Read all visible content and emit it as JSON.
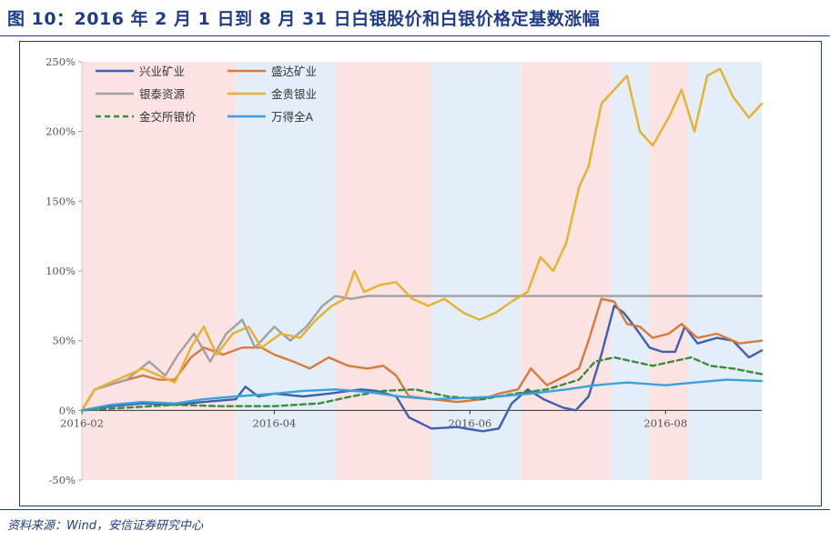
{
  "header": {
    "title": "图 10：2016 年 2 月 1 日到 8 月 31 日白银股价和白银价格定基数涨幅"
  },
  "footer": {
    "source": "资料来源：Wind，安信证券研究中心"
  },
  "chart_data": {
    "type": "line",
    "x_range": [
      "2016-02-01",
      "2016-08-31"
    ],
    "ylim": [
      -50,
      250
    ],
    "y_ticks": [
      "250%",
      "200%",
      "150%",
      "100%",
      "50%",
      "0%",
      "-50%"
    ],
    "y_tick_values": [
      250,
      200,
      150,
      100,
      50,
      0,
      -50
    ],
    "x_tick_labels": [
      "2016-02",
      "2016-04",
      "2016-06",
      "2016-08"
    ],
    "x_tick_dates": [
      "2016-02-01",
      "2016-04-01",
      "2016-06-01",
      "2016-08-01"
    ],
    "grid": false,
    "legend_position": "top-left",
    "shaded_periods": [
      {
        "start": "2016-02-01",
        "end": "2016-03-20",
        "color": "#fbe3e3"
      },
      {
        "start": "2016-03-20",
        "end": "2016-04-20",
        "color": "#e3eef8"
      },
      {
        "start": "2016-04-20",
        "end": "2016-05-20",
        "color": "#fbe3e3"
      },
      {
        "start": "2016-05-20",
        "end": "2016-06-17",
        "color": "#e3eef8"
      },
      {
        "start": "2016-06-17",
        "end": "2016-07-15",
        "color": "#fbe3e3"
      },
      {
        "start": "2016-07-15",
        "end": "2016-07-27",
        "color": "#e3eef8"
      },
      {
        "start": "2016-07-27",
        "end": "2016-08-08",
        "color": "#fbe3e3"
      },
      {
        "start": "2016-08-08",
        "end": "2016-08-31",
        "color": "#e3eef8"
      }
    ],
    "series": [
      {
        "name": "兴业矿业",
        "color": "#3f5fb0",
        "dash": false,
        "points": [
          [
            "2016-02-01",
            0
          ],
          [
            "2016-02-10",
            3
          ],
          [
            "2016-02-20",
            5
          ],
          [
            "2016-03-01",
            4
          ],
          [
            "2016-03-10",
            6
          ],
          [
            "2016-03-20",
            8
          ],
          [
            "2016-03-23",
            17
          ],
          [
            "2016-03-27",
            10
          ],
          [
            "2016-04-01",
            12
          ],
          [
            "2016-04-10",
            10
          ],
          [
            "2016-04-18",
            12
          ],
          [
            "2016-04-28",
            15
          ],
          [
            "2016-05-03",
            14
          ],
          [
            "2016-05-09",
            10
          ],
          [
            "2016-05-13",
            -5
          ],
          [
            "2016-05-20",
            -13
          ],
          [
            "2016-05-28",
            -12
          ],
          [
            "2016-06-05",
            -15
          ],
          [
            "2016-06-10",
            -13
          ],
          [
            "2016-06-14",
            5
          ],
          [
            "2016-06-19",
            15
          ],
          [
            "2016-06-24",
            8
          ],
          [
            "2016-06-30",
            2
          ],
          [
            "2016-07-04",
            0
          ],
          [
            "2016-07-08",
            10
          ],
          [
            "2016-07-12",
            40
          ],
          [
            "2016-07-16",
            75
          ],
          [
            "2016-07-19",
            70
          ],
          [
            "2016-07-23",
            58
          ],
          [
            "2016-07-27",
            45
          ],
          [
            "2016-07-31",
            42
          ],
          [
            "2016-08-04",
            42
          ],
          [
            "2016-08-07",
            60
          ],
          [
            "2016-08-11",
            48
          ],
          [
            "2016-08-17",
            52
          ],
          [
            "2016-08-22",
            50
          ],
          [
            "2016-08-27",
            38
          ],
          [
            "2016-08-31",
            43
          ]
        ]
      },
      {
        "name": "盛达矿业",
        "color": "#d77a3a",
        "dash": false,
        "points": [
          [
            "2016-02-01",
            0
          ],
          [
            "2016-02-05",
            15
          ],
          [
            "2016-02-12",
            20
          ],
          [
            "2016-02-20",
            25
          ],
          [
            "2016-02-25",
            22
          ],
          [
            "2016-03-01",
            22
          ],
          [
            "2016-03-06",
            38
          ],
          [
            "2016-03-10",
            45
          ],
          [
            "2016-03-16",
            40
          ],
          [
            "2016-03-22",
            45
          ],
          [
            "2016-03-28",
            45
          ],
          [
            "2016-04-01",
            40
          ],
          [
            "2016-04-07",
            35
          ],
          [
            "2016-04-12",
            30
          ],
          [
            "2016-04-18",
            38
          ],
          [
            "2016-04-24",
            32
          ],
          [
            "2016-04-30",
            30
          ],
          [
            "2016-05-05",
            32
          ],
          [
            "2016-05-09",
            25
          ],
          [
            "2016-05-13",
            10
          ],
          [
            "2016-05-20",
            8
          ],
          [
            "2016-05-28",
            6
          ],
          [
            "2016-06-05",
            8
          ],
          [
            "2016-06-10",
            12
          ],
          [
            "2016-06-16",
            15
          ],
          [
            "2016-06-20",
            30
          ],
          [
            "2016-06-25",
            18
          ],
          [
            "2016-07-01",
            25
          ],
          [
            "2016-07-05",
            30
          ],
          [
            "2016-07-08",
            50
          ],
          [
            "2016-07-12",
            80
          ],
          [
            "2016-07-16",
            78
          ],
          [
            "2016-07-20",
            62
          ],
          [
            "2016-07-24",
            60
          ],
          [
            "2016-07-28",
            52
          ],
          [
            "2016-08-02",
            55
          ],
          [
            "2016-08-06",
            62
          ],
          [
            "2016-08-11",
            52
          ],
          [
            "2016-08-17",
            55
          ],
          [
            "2016-08-24",
            48
          ],
          [
            "2016-08-31",
            50
          ]
        ]
      },
      {
        "name": "银泰资源",
        "color": "#a0a0a0",
        "dash": false,
        "points": [
          [
            "2016-02-01",
            0
          ],
          [
            "2016-02-05",
            15
          ],
          [
            "2016-02-15",
            22
          ],
          [
            "2016-02-22",
            35
          ],
          [
            "2016-02-27",
            25
          ],
          [
            "2016-03-02",
            40
          ],
          [
            "2016-03-07",
            55
          ],
          [
            "2016-03-12",
            35
          ],
          [
            "2016-03-17",
            55
          ],
          [
            "2016-03-22",
            65
          ],
          [
            "2016-03-26",
            45
          ],
          [
            "2016-04-01",
            60
          ],
          [
            "2016-04-06",
            50
          ],
          [
            "2016-04-11",
            60
          ],
          [
            "2016-04-16",
            75
          ],
          [
            "2016-04-20",
            82
          ],
          [
            "2016-04-25",
            80
          ],
          [
            "2016-04-30",
            82
          ],
          [
            "2016-05-10",
            82
          ],
          [
            "2016-06-01",
            82
          ],
          [
            "2016-07-01",
            82
          ],
          [
            "2016-08-01",
            82
          ],
          [
            "2016-08-31",
            82
          ]
        ]
      },
      {
        "name": "金贵银业",
        "color": "#e6b12e",
        "dash": false,
        "points": [
          [
            "2016-02-01",
            0
          ],
          [
            "2016-02-05",
            15
          ],
          [
            "2016-02-12",
            22
          ],
          [
            "2016-02-20",
            30
          ],
          [
            "2016-02-25",
            25
          ],
          [
            "2016-03-01",
            20
          ],
          [
            "2016-03-06",
            45
          ],
          [
            "2016-03-10",
            60
          ],
          [
            "2016-03-14",
            40
          ],
          [
            "2016-03-19",
            55
          ],
          [
            "2016-03-24",
            60
          ],
          [
            "2016-03-28",
            45
          ],
          [
            "2016-04-03",
            55
          ],
          [
            "2016-04-09",
            52
          ],
          [
            "2016-04-14",
            65
          ],
          [
            "2016-04-19",
            75
          ],
          [
            "2016-04-23",
            80
          ],
          [
            "2016-04-26",
            100
          ],
          [
            "2016-04-29",
            85
          ],
          [
            "2016-05-04",
            90
          ],
          [
            "2016-05-09",
            92
          ],
          [
            "2016-05-14",
            80
          ],
          [
            "2016-05-19",
            75
          ],
          [
            "2016-05-24",
            80
          ],
          [
            "2016-05-30",
            70
          ],
          [
            "2016-06-04",
            65
          ],
          [
            "2016-06-09",
            70
          ],
          [
            "2016-06-14",
            78
          ],
          [
            "2016-06-19",
            85
          ],
          [
            "2016-06-23",
            110
          ],
          [
            "2016-06-27",
            100
          ],
          [
            "2016-07-01",
            120
          ],
          [
            "2016-07-05",
            160
          ],
          [
            "2016-07-08",
            175
          ],
          [
            "2016-07-12",
            220
          ],
          [
            "2016-07-16",
            230
          ],
          [
            "2016-07-20",
            240
          ],
          [
            "2016-07-24",
            200
          ],
          [
            "2016-07-28",
            190
          ],
          [
            "2016-08-02",
            210
          ],
          [
            "2016-08-06",
            230
          ],
          [
            "2016-08-10",
            200
          ],
          [
            "2016-08-14",
            240
          ],
          [
            "2016-08-18",
            245
          ],
          [
            "2016-08-22",
            225
          ],
          [
            "2016-08-27",
            210
          ],
          [
            "2016-08-31",
            220
          ]
        ]
      },
      {
        "name": "金交所银价",
        "color": "#3b8a3e",
        "dash": true,
        "points": [
          [
            "2016-02-01",
            0
          ],
          [
            "2016-02-15",
            2
          ],
          [
            "2016-03-01",
            4
          ],
          [
            "2016-03-15",
            3
          ],
          [
            "2016-04-01",
            3
          ],
          [
            "2016-04-15",
            5
          ],
          [
            "2016-04-25",
            10
          ],
          [
            "2016-05-05",
            14
          ],
          [
            "2016-05-15",
            15
          ],
          [
            "2016-05-25",
            10
          ],
          [
            "2016-06-05",
            8
          ],
          [
            "2016-06-15",
            12
          ],
          [
            "2016-06-25",
            15
          ],
          [
            "2016-07-05",
            22
          ],
          [
            "2016-07-10",
            35
          ],
          [
            "2016-07-16",
            38
          ],
          [
            "2016-07-22",
            35
          ],
          [
            "2016-07-28",
            32
          ],
          [
            "2016-08-03",
            35
          ],
          [
            "2016-08-09",
            38
          ],
          [
            "2016-08-15",
            32
          ],
          [
            "2016-08-22",
            30
          ],
          [
            "2016-08-31",
            26
          ]
        ]
      },
      {
        "name": "万得全A",
        "color": "#3aa1da",
        "dash": false,
        "points": [
          [
            "2016-02-01",
            0
          ],
          [
            "2016-02-10",
            4
          ],
          [
            "2016-02-20",
            6
          ],
          [
            "2016-03-01",
            5
          ],
          [
            "2016-03-10",
            8
          ],
          [
            "2016-03-20",
            10
          ],
          [
            "2016-04-01",
            12
          ],
          [
            "2016-04-10",
            14
          ],
          [
            "2016-04-20",
            15
          ],
          [
            "2016-05-01",
            13
          ],
          [
            "2016-05-10",
            10
          ],
          [
            "2016-05-20",
            8
          ],
          [
            "2016-06-01",
            9
          ],
          [
            "2016-06-10",
            10
          ],
          [
            "2016-06-20",
            12
          ],
          [
            "2016-07-01",
            15
          ],
          [
            "2016-07-10",
            18
          ],
          [
            "2016-07-20",
            20
          ],
          [
            "2016-08-01",
            18
          ],
          [
            "2016-08-10",
            20
          ],
          [
            "2016-08-20",
            22
          ],
          [
            "2016-08-31",
            21
          ]
        ]
      }
    ]
  }
}
